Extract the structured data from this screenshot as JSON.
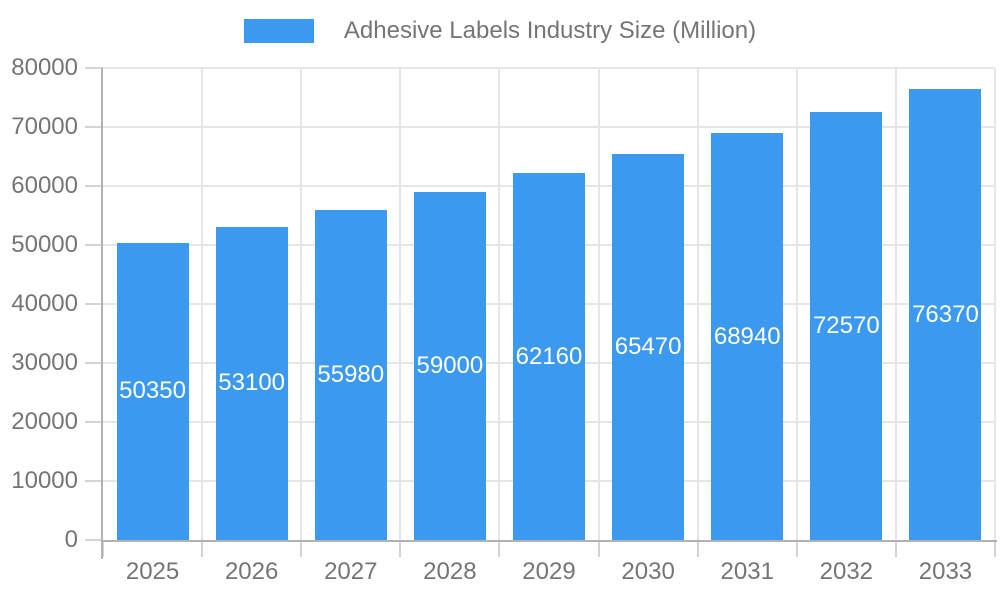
{
  "chart_data": {
    "type": "bar",
    "title": "Adhesive Labels Industry Size (Million)",
    "categories": [
      "2025",
      "2026",
      "2027",
      "2028",
      "2029",
      "2030",
      "2031",
      "2032",
      "2033"
    ],
    "values": [
      50350,
      53100,
      55980,
      59000,
      62160,
      65470,
      68940,
      72570,
      76370
    ],
    "value_labels": [
      "50350",
      "53100",
      "55980",
      "59000",
      "62160",
      "65470",
      "68940",
      "72570",
      "76370"
    ],
    "xlabel": "",
    "ylabel": "",
    "ylim": [
      0,
      80000
    ],
    "ytick_step": 10000,
    "ytick_labels": [
      "0",
      "10000",
      "20000",
      "30000",
      "40000",
      "50000",
      "60000",
      "70000",
      "80000"
    ],
    "grid": true,
    "legend_position": "top-center",
    "value_label_position": "inside-middle"
  },
  "colors": {
    "bar": "#3B99EF",
    "legend_text": "#757575",
    "axis_label": "#757575",
    "axis_line": "#b2b2b2",
    "tick": "#d4d4d4",
    "gridline": "#e6e6e6",
    "value_label": "#ffffff",
    "background": "#ffffff"
  }
}
